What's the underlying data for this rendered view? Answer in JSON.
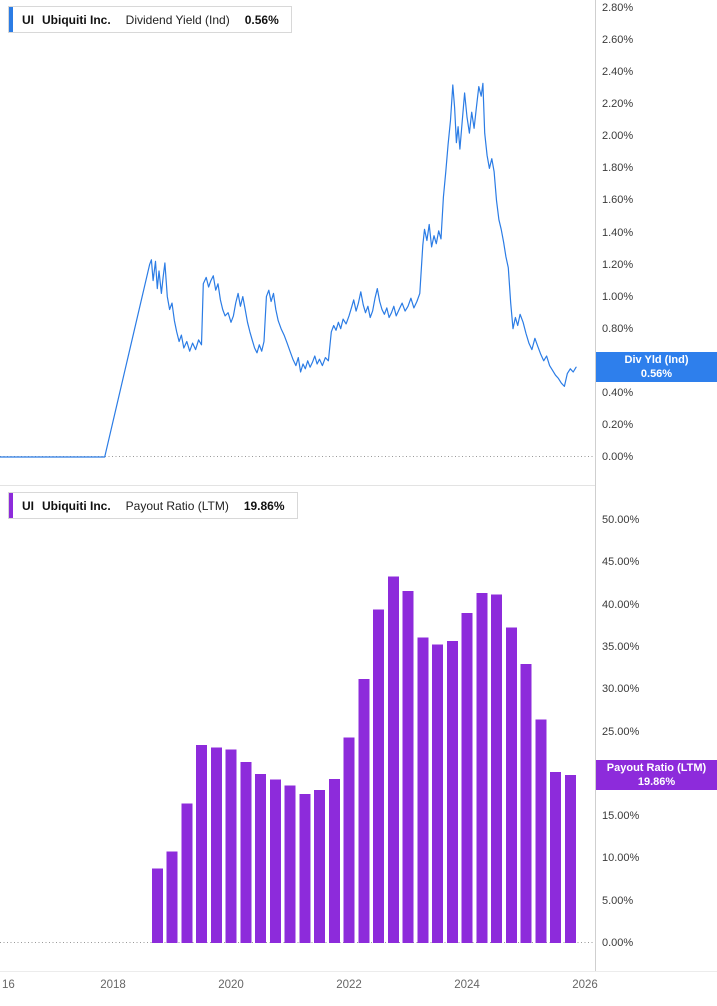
{
  "colors": {
    "line_blue": "#2B7CE5",
    "badge_blue": "#2E7FEC",
    "bar_purple": "#8D2BDB",
    "badge_purple": "#8D2BDB",
    "zero_line": "#999999"
  },
  "top_chart": {
    "legend": {
      "ticker": "UI",
      "company": "Ubiquiti Inc.",
      "metric": "Dividend Yield (Ind)",
      "value": "0.56%"
    },
    "badge": {
      "line1": "Div Yld (Ind)",
      "line2": "0.56%"
    },
    "y_ticks": [
      "2.80%",
      "2.60%",
      "2.40%",
      "2.20%",
      "2.00%",
      "1.80%",
      "1.60%",
      "1.40%",
      "1.20%",
      "1.00%",
      "0.80%",
      "0.60%",
      "0.40%",
      "0.20%",
      "0.00%"
    ]
  },
  "bottom_chart": {
    "legend": {
      "ticker": "UI",
      "company": "Ubiquiti Inc.",
      "metric": "Payout Ratio (LTM)",
      "value": "19.86%"
    },
    "badge": {
      "line1": "Payout Ratio (LTM)",
      "line2": "19.86%"
    },
    "y_ticks": [
      "50.00%",
      "45.00%",
      "40.00%",
      "35.00%",
      "30.00%",
      "25.00%",
      "20.00%",
      "15.00%",
      "10.00%",
      "5.00%",
      "0.00%"
    ]
  },
  "x_axis": {
    "ticks": [
      {
        "label": "16",
        "year": 2016
      },
      {
        "label": "2018",
        "year": 2018
      },
      {
        "label": "2020",
        "year": 2020
      },
      {
        "label": "2022",
        "year": 2022
      },
      {
        "label": "2024",
        "year": 2024
      },
      {
        "label": "2026",
        "year": 2026
      }
    ]
  },
  "chart_data": [
    {
      "type": "line",
      "name": "Dividend Yield (Ind)",
      "ticker": "UI",
      "company": "Ubiquiti Inc.",
      "unit": "percent",
      "latest_value": 0.56,
      "x_range": [
        2016.0,
        2026.1
      ],
      "y_axis": {
        "min": 0,
        "max": 2.85,
        "tick_step": 0.2
      },
      "grid": false,
      "zero_line": "dotted",
      "legend_position": "top-left",
      "points": [
        [
          2016.05,
          0
        ],
        [
          2017.86,
          0
        ],
        [
          2018.62,
          1.2
        ],
        [
          2018.65,
          1.23
        ],
        [
          2018.68,
          1.1
        ],
        [
          2018.72,
          1.22
        ],
        [
          2018.75,
          1.05
        ],
        [
          2018.78,
          1.16
        ],
        [
          2018.82,
          1.02
        ],
        [
          2018.85,
          1.12
        ],
        [
          2018.88,
          1.21
        ],
        [
          2018.92,
          1.0
        ],
        [
          2018.96,
          0.92
        ],
        [
          2019.0,
          0.96
        ],
        [
          2019.04,
          0.85
        ],
        [
          2019.08,
          0.78
        ],
        [
          2019.12,
          0.72
        ],
        [
          2019.16,
          0.76
        ],
        [
          2019.2,
          0.68
        ],
        [
          2019.25,
          0.72
        ],
        [
          2019.3,
          0.66
        ],
        [
          2019.35,
          0.71
        ],
        [
          2019.4,
          0.67
        ],
        [
          2019.45,
          0.73
        ],
        [
          2019.5,
          0.7
        ],
        [
          2019.53,
          1.08
        ],
        [
          2019.58,
          1.12
        ],
        [
          2019.62,
          1.06
        ],
        [
          2019.66,
          1.1
        ],
        [
          2019.7,
          1.13
        ],
        [
          2019.74,
          1.04
        ],
        [
          2019.78,
          1.08
        ],
        [
          2019.82,
          0.98
        ],
        [
          2019.86,
          0.92
        ],
        [
          2019.9,
          0.88
        ],
        [
          2019.95,
          0.9
        ],
        [
          2020.0,
          0.84
        ],
        [
          2020.04,
          0.88
        ],
        [
          2020.08,
          0.96
        ],
        [
          2020.12,
          1.02
        ],
        [
          2020.16,
          0.94
        ],
        [
          2020.2,
          1.0
        ],
        [
          2020.24,
          0.92
        ],
        [
          2020.28,
          0.84
        ],
        [
          2020.32,
          0.78
        ],
        [
          2020.36,
          0.73
        ],
        [
          2020.4,
          0.68
        ],
        [
          2020.44,
          0.65
        ],
        [
          2020.48,
          0.7
        ],
        [
          2020.52,
          0.66
        ],
        [
          2020.56,
          0.72
        ],
        [
          2020.6,
          1.0
        ],
        [
          2020.64,
          1.04
        ],
        [
          2020.68,
          0.97
        ],
        [
          2020.72,
          1.02
        ],
        [
          2020.76,
          0.92
        ],
        [
          2020.8,
          0.85
        ],
        [
          2020.85,
          0.8
        ],
        [
          2020.9,
          0.76
        ],
        [
          2020.95,
          0.71
        ],
        [
          2021.0,
          0.66
        ],
        [
          2021.05,
          0.61
        ],
        [
          2021.1,
          0.57
        ],
        [
          2021.14,
          0.62
        ],
        [
          2021.18,
          0.53
        ],
        [
          2021.22,
          0.58
        ],
        [
          2021.26,
          0.55
        ],
        [
          2021.3,
          0.6
        ],
        [
          2021.34,
          0.56
        ],
        [
          2021.38,
          0.59
        ],
        [
          2021.42,
          0.63
        ],
        [
          2021.46,
          0.58
        ],
        [
          2021.5,
          0.61
        ],
        [
          2021.55,
          0.57
        ],
        [
          2021.6,
          0.62
        ],
        [
          2021.65,
          0.6
        ],
        [
          2021.7,
          0.78
        ],
        [
          2021.74,
          0.82
        ],
        [
          2021.78,
          0.79
        ],
        [
          2021.82,
          0.84
        ],
        [
          2021.86,
          0.8
        ],
        [
          2021.9,
          0.86
        ],
        [
          2021.95,
          0.83
        ],
        [
          2022.0,
          0.88
        ],
        [
          2022.04,
          0.93
        ],
        [
          2022.08,
          0.98
        ],
        [
          2022.12,
          0.91
        ],
        [
          2022.16,
          0.96
        ],
        [
          2022.2,
          1.03
        ],
        [
          2022.24,
          0.95
        ],
        [
          2022.28,
          0.9
        ],
        [
          2022.32,
          0.94
        ],
        [
          2022.36,
          0.87
        ],
        [
          2022.4,
          0.91
        ],
        [
          2022.44,
          0.99
        ],
        [
          2022.48,
          1.05
        ],
        [
          2022.52,
          0.97
        ],
        [
          2022.56,
          0.92
        ],
        [
          2022.6,
          0.89
        ],
        [
          2022.64,
          0.93
        ],
        [
          2022.68,
          0.87
        ],
        [
          2022.72,
          0.9
        ],
        [
          2022.76,
          0.94
        ],
        [
          2022.8,
          0.88
        ],
        [
          2022.85,
          0.92
        ],
        [
          2022.9,
          0.96
        ],
        [
          2022.95,
          0.91
        ],
        [
          2023.0,
          0.94
        ],
        [
          2023.05,
          0.99
        ],
        [
          2023.1,
          0.93
        ],
        [
          2023.15,
          0.97
        ],
        [
          2023.2,
          1.02
        ],
        [
          2023.25,
          1.32
        ],
        [
          2023.28,
          1.42
        ],
        [
          2023.32,
          1.35
        ],
        [
          2023.36,
          1.45
        ],
        [
          2023.4,
          1.31
        ],
        [
          2023.44,
          1.38
        ],
        [
          2023.48,
          1.33
        ],
        [
          2023.52,
          1.41
        ],
        [
          2023.56,
          1.36
        ],
        [
          2023.6,
          1.62
        ],
        [
          2023.64,
          1.78
        ],
        [
          2023.68,
          1.95
        ],
        [
          2023.72,
          2.1
        ],
        [
          2023.76,
          2.32
        ],
        [
          2023.79,
          2.18
        ],
        [
          2023.82,
          1.96
        ],
        [
          2023.85,
          2.06
        ],
        [
          2023.88,
          1.92
        ],
        [
          2023.92,
          2.1
        ],
        [
          2023.96,
          2.27
        ],
        [
          2024.0,
          2.12
        ],
        [
          2024.04,
          2.02
        ],
        [
          2024.08,
          2.15
        ],
        [
          2024.12,
          2.05
        ],
        [
          2024.16,
          2.18
        ],
        [
          2024.2,
          2.31
        ],
        [
          2024.24,
          2.25
        ],
        [
          2024.27,
          2.33
        ],
        [
          2024.3,
          2.02
        ],
        [
          2024.34,
          1.88
        ],
        [
          2024.38,
          1.8
        ],
        [
          2024.42,
          1.86
        ],
        [
          2024.46,
          1.78
        ],
        [
          2024.5,
          1.6
        ],
        [
          2024.54,
          1.48
        ],
        [
          2024.58,
          1.42
        ],
        [
          2024.62,
          1.34
        ],
        [
          2024.66,
          1.25
        ],
        [
          2024.7,
          1.18
        ],
        [
          2024.74,
          0.96
        ],
        [
          2024.78,
          0.8
        ],
        [
          2024.82,
          0.87
        ],
        [
          2024.86,
          0.82
        ],
        [
          2024.9,
          0.89
        ],
        [
          2024.95,
          0.84
        ],
        [
          2025.0,
          0.77
        ],
        [
          2025.05,
          0.71
        ],
        [
          2025.1,
          0.67
        ],
        [
          2025.15,
          0.74
        ],
        [
          2025.2,
          0.69
        ],
        [
          2025.25,
          0.64
        ],
        [
          2025.3,
          0.6
        ],
        [
          2025.35,
          0.63
        ],
        [
          2025.4,
          0.57
        ],
        [
          2025.45,
          0.54
        ],
        [
          2025.5,
          0.51
        ],
        [
          2025.55,
          0.49
        ],
        [
          2025.6,
          0.46
        ],
        [
          2025.65,
          0.44
        ],
        [
          2025.7,
          0.52
        ],
        [
          2025.75,
          0.55
        ],
        [
          2025.8,
          0.53
        ],
        [
          2025.85,
          0.56
        ]
      ]
    },
    {
      "type": "bar",
      "name": "Payout Ratio (LTM)",
      "ticker": "UI",
      "company": "Ubiquiti Inc.",
      "unit": "percent",
      "latest_value": 19.86,
      "x_range": [
        2016.0,
        2026.1
      ],
      "y_axis": {
        "min": 0,
        "max": 54,
        "tick_step": 5
      },
      "bar_period": "quarterly",
      "start_year": 2018.75,
      "categories": [
        "2018Q3",
        "2018Q4",
        "2019Q1",
        "2019Q2",
        "2019Q3",
        "2019Q4",
        "2020Q1",
        "2020Q2",
        "2020Q3",
        "2020Q4",
        "2021Q1",
        "2021Q2",
        "2021Q3",
        "2021Q4",
        "2022Q1",
        "2022Q2",
        "2022Q3",
        "2022Q4",
        "2023Q1",
        "2023Q2",
        "2023Q3",
        "2023Q4",
        "2024Q1",
        "2024Q2",
        "2024Q3",
        "2024Q4",
        "2025Q1",
        "2025Q2",
        "2025Q3"
      ],
      "values": [
        8.8,
        10.8,
        16.5,
        23.4,
        23.1,
        22.9,
        21.4,
        20.0,
        19.3,
        18.6,
        17.6,
        18.1,
        19.4,
        24.3,
        31.2,
        39.4,
        43.3,
        41.6,
        36.1,
        35.3,
        35.7,
        39.0,
        41.4,
        41.2,
        37.3,
        33.0,
        26.4,
        20.2,
        19.86
      ]
    }
  ]
}
